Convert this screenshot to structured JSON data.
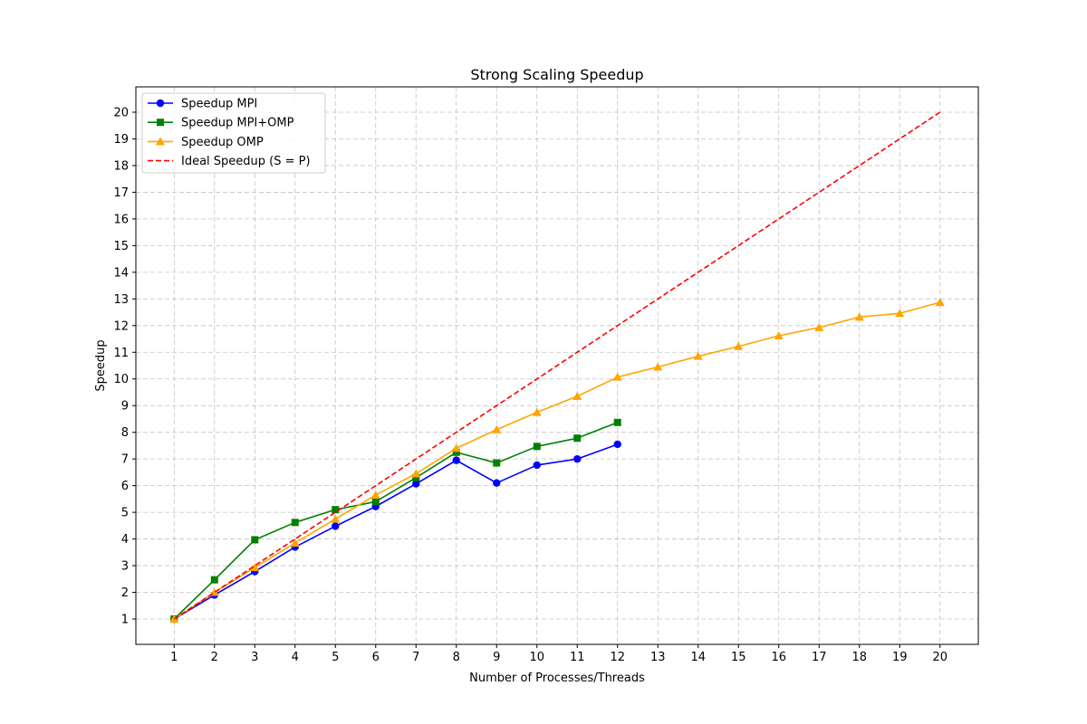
{
  "chart_data": {
    "type": "line",
    "title": "Strong Scaling Speedup",
    "xlabel": "Number of Processes/Threads",
    "ylabel": "Speedup",
    "xlim": [
      0.05,
      20.95
    ],
    "ylim": [
      0.05,
      20.95
    ],
    "xticks": [
      1,
      2,
      3,
      4,
      5,
      6,
      7,
      8,
      9,
      10,
      11,
      12,
      13,
      14,
      15,
      16,
      17,
      18,
      19,
      20
    ],
    "yticks": [
      1,
      2,
      3,
      4,
      5,
      6,
      7,
      8,
      9,
      10,
      11,
      12,
      13,
      14,
      15,
      16,
      17,
      18,
      19,
      20
    ],
    "grid": true,
    "legend_position": "top-left",
    "series": [
      {
        "name": "Speedup MPI",
        "color": "#0000ff",
        "marker": "circle",
        "dashed": false,
        "x": [
          1,
          2,
          3,
          4,
          5,
          6,
          7,
          8,
          9,
          10,
          11,
          12
        ],
        "y": [
          1.0,
          1.9,
          2.78,
          3.7,
          4.48,
          5.22,
          6.07,
          6.95,
          6.1,
          6.77,
          7.0,
          7.55
        ]
      },
      {
        "name": "Speedup MPI+OMP",
        "color": "#008000",
        "marker": "square",
        "dashed": false,
        "x": [
          1,
          2,
          3,
          4,
          5,
          6,
          7,
          8,
          9,
          10,
          11,
          12
        ],
        "y": [
          1.0,
          2.47,
          3.97,
          4.62,
          5.1,
          5.4,
          6.3,
          7.25,
          6.85,
          7.47,
          7.78,
          8.37
        ]
      },
      {
        "name": "Speedup OMP",
        "color": "#ffa500",
        "marker": "triangle",
        "dashed": false,
        "x": [
          1,
          2,
          3,
          4,
          5,
          6,
          7,
          8,
          9,
          10,
          11,
          12,
          13,
          14,
          15,
          16,
          17,
          18,
          19,
          20
        ],
        "y": [
          1.0,
          2.0,
          2.93,
          3.85,
          4.75,
          5.65,
          6.45,
          7.4,
          8.1,
          8.75,
          9.35,
          10.07,
          10.45,
          10.85,
          11.22,
          11.62,
          11.93,
          12.32,
          12.46,
          12.87
        ]
      },
      {
        "name": "Ideal Speedup (S = P)",
        "color": "#ff0000",
        "marker": "none",
        "dashed": true,
        "x": [
          1,
          20
        ],
        "y": [
          1,
          20
        ]
      }
    ]
  }
}
